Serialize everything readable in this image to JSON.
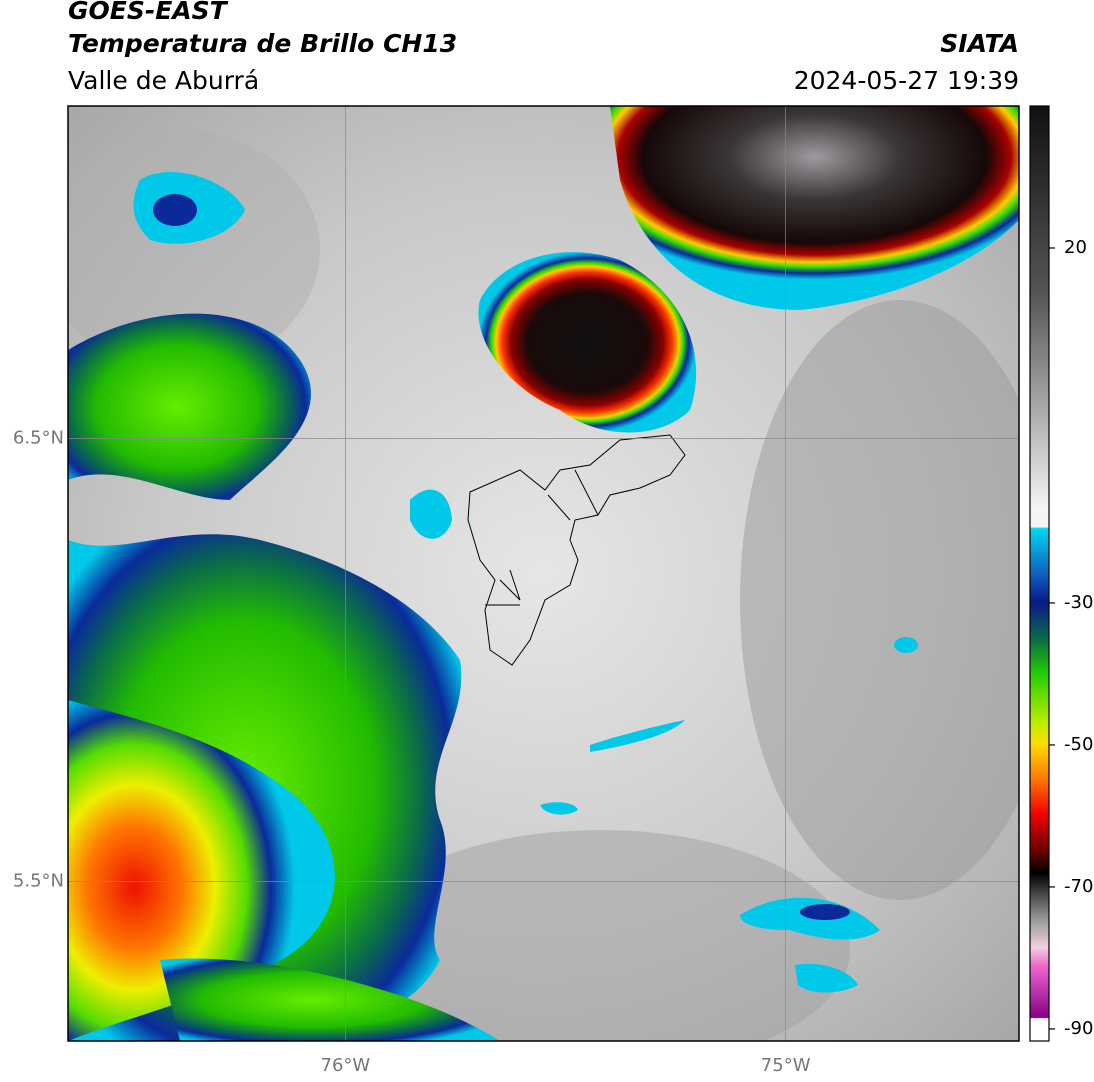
{
  "chart_data": {
    "type": "map",
    "title": "GOES-EAST",
    "subtitle": "Temperatura de Brillo CH13",
    "region": "Valle de Aburrá",
    "source": "SIATA",
    "timestamp": "2024-05-27 19:39",
    "xlim": [
      -76.63,
      -74.47
    ],
    "ylim": [
      5.14,
      7.25
    ],
    "xticks": [
      {
        "value": -76,
        "label": "76°W"
      },
      {
        "value": -75,
        "label": "75°W"
      }
    ],
    "yticks": [
      {
        "value": 6.5,
        "label": "6.5°N"
      },
      {
        "value": 5.5,
        "label": "5.5°N"
      }
    ],
    "grid": true,
    "colorbar": {
      "lim": [
        -91.7,
        40
      ],
      "ticks": [
        20,
        -30,
        -50,
        -70,
        -90
      ]
    }
  }
}
